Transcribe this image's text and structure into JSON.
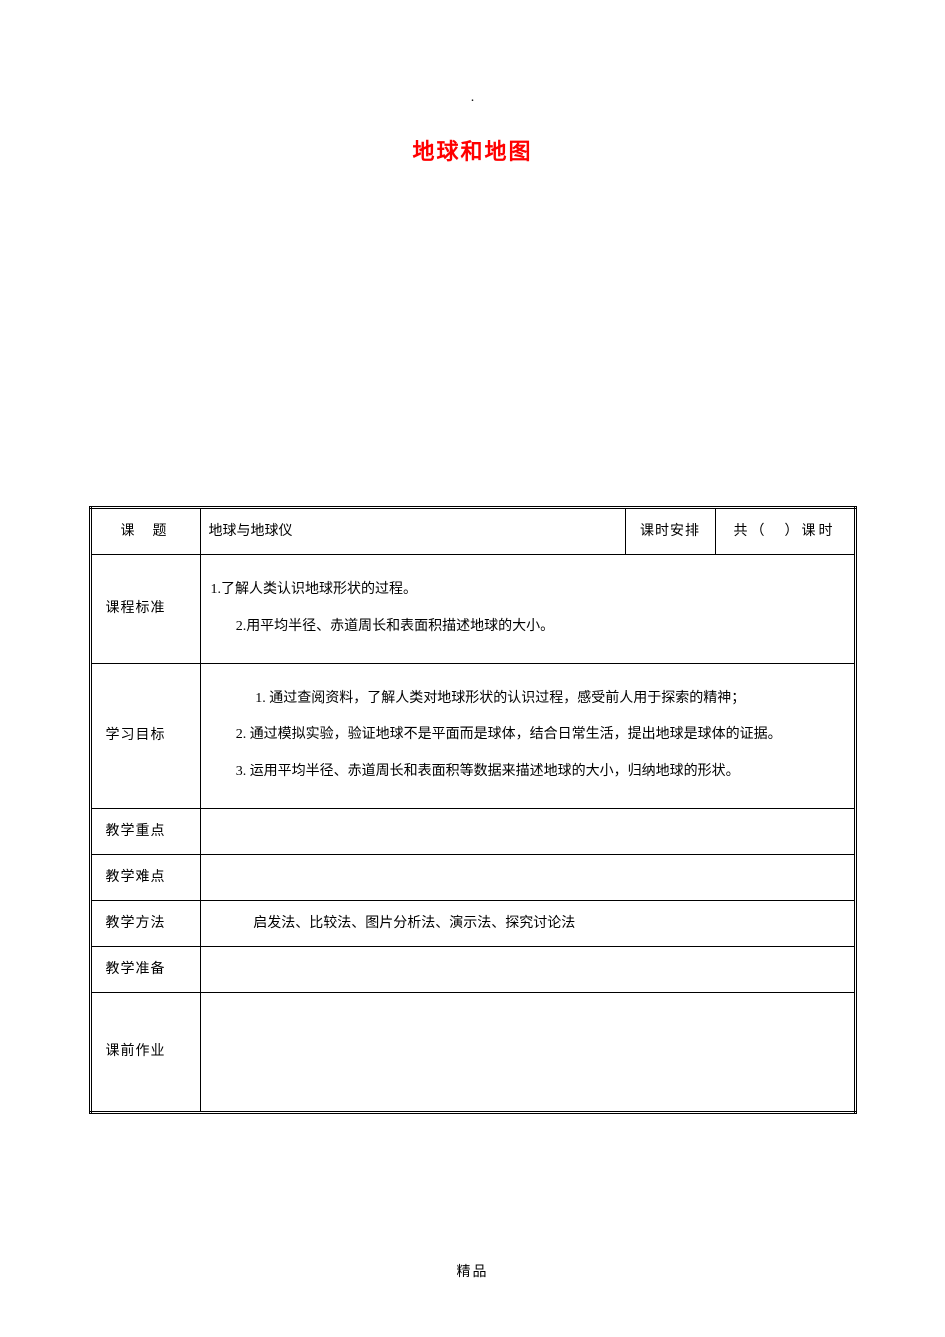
{
  "page_marker": ".",
  "title": "地球和地图",
  "table": {
    "border_color": "#000000",
    "font_family": "SimSun",
    "rows": {
      "topic": {
        "label": "课题",
        "value": "地球与地球仪",
        "schedule_label": "课时安排",
        "schedule_value": "共（　）课时"
      },
      "standard": {
        "label": "课程标准",
        "lines": [
          "1.了解人类认识地球形状的过程。",
          "2.用平均半径、赤道周长和表面积描述地球的大小。"
        ]
      },
      "objectives": {
        "label": "学习目标",
        "lines": [
          "1. 通过查阅资料，了解人类对地球形状的认识过程，感受前人用于探索的精神；",
          "2. 通过模拟实验，验证地球不是平面而是球体，结合日常生活，提出地球是球体的证据。",
          "3. 运用平均半径、赤道周长和表面积等数据来描述地球的大小，归纳地球的形状。"
        ]
      },
      "focus": {
        "label": "教学重点",
        "value": ""
      },
      "difficulty": {
        "label": "教学难点",
        "value": ""
      },
      "methods": {
        "label": "教学方法",
        "value": "启发法、比较法、图片分析法、演示法、探究讨论法"
      },
      "prep": {
        "label": "教学准备",
        "value": ""
      },
      "homework": {
        "label": "课前作业",
        "value": ""
      }
    }
  },
  "footer": "精品",
  "colors": {
    "title_color": "#ff0000",
    "text_color": "#000000",
    "background": "#ffffff"
  }
}
